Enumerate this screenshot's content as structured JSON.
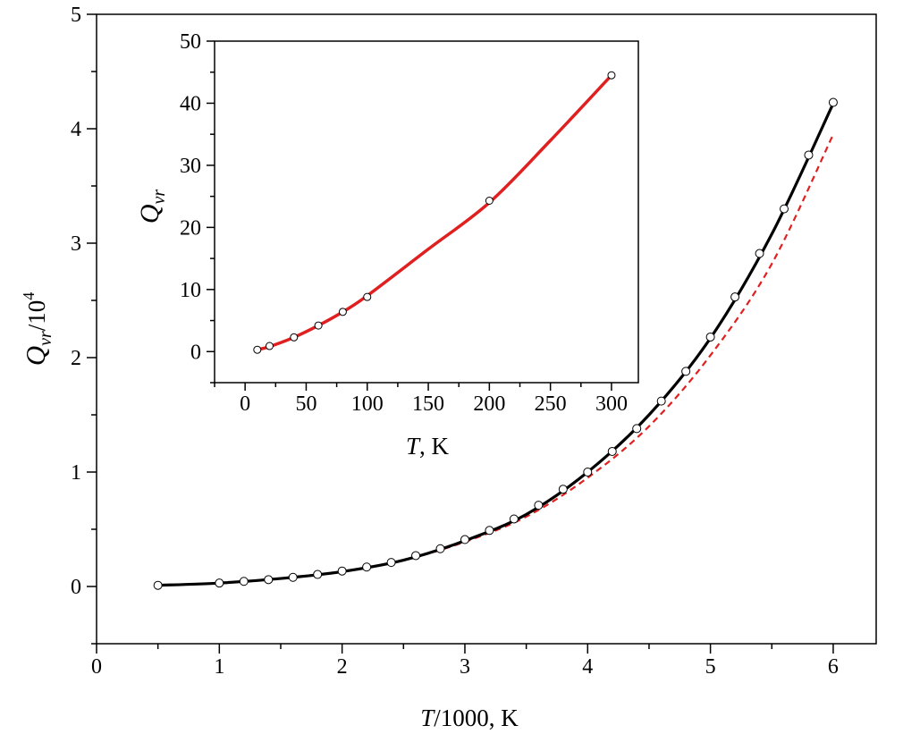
{
  "chart_data": [
    {
      "type": "line",
      "panel": "main",
      "xlabel_var": "T",
      "xlabel_rest": "/1000, K",
      "ylabel_var": "Q",
      "ylabel_sub": "vr",
      "ylabel_rest": "/10",
      "ylabel_sup": "4",
      "xlim": [
        0,
        6.35
      ],
      "ylim": [
        -0.5,
        5
      ],
      "xticks": [
        "0",
        "1",
        "2",
        "3",
        "4",
        "5",
        "6"
      ],
      "yticks": [
        "0",
        "1",
        "2",
        "3",
        "4",
        "5"
      ],
      "series": [
        {
          "style": "solid",
          "color": "#000000",
          "x": [
            0.5,
            1.0,
            1.5,
            2.0,
            2.5,
            3.0,
            3.5,
            4.0,
            4.5,
            5.0,
            5.5,
            6.0
          ],
          "y": [
            0.01,
            0.03,
            0.07,
            0.13,
            0.23,
            0.4,
            0.63,
            1.0,
            1.5,
            2.17,
            3.08,
            4.22
          ]
        },
        {
          "style": "dashed",
          "color": "#e02020",
          "x": [
            0.5,
            1.0,
            1.5,
            2.0,
            2.5,
            3.0,
            3.5,
            4.0,
            4.5,
            5.0,
            5.5,
            6.0
          ],
          "y": [
            0.01,
            0.03,
            0.07,
            0.13,
            0.23,
            0.39,
            0.61,
            0.95,
            1.4,
            2.02,
            2.82,
            3.95
          ]
        },
        {
          "style": "markers",
          "color": "#000000",
          "x": [
            0.5,
            1.0,
            1.2,
            1.4,
            1.6,
            1.8,
            2.0,
            2.2,
            2.4,
            2.6,
            2.8,
            3.0,
            3.2,
            3.4,
            3.6,
            3.8,
            4.0,
            4.2,
            4.4,
            4.6,
            4.8,
            5.0,
            5.2,
            5.4,
            5.6,
            5.8,
            6.0
          ],
          "y": [
            0.01,
            0.03,
            0.045,
            0.06,
            0.08,
            0.105,
            0.135,
            0.17,
            0.21,
            0.27,
            0.33,
            0.41,
            0.49,
            0.59,
            0.71,
            0.85,
            1.0,
            1.18,
            1.38,
            1.62,
            1.88,
            2.18,
            2.53,
            2.91,
            3.3,
            3.77,
            4.23
          ]
        }
      ]
    },
    {
      "type": "line",
      "panel": "inset",
      "xlabel_var": "T",
      "xlabel_rest": ", K",
      "ylabel_var": "Q",
      "ylabel_sub": "vr",
      "xlim": [
        -25,
        322
      ],
      "ylim": [
        -5,
        50
      ],
      "xticks": [
        "0",
        "50",
        "100",
        "150",
        "200",
        "250",
        "300"
      ],
      "yticks": [
        "0",
        "10",
        "20",
        "30",
        "40",
        "50"
      ],
      "series": [
        {
          "style": "solid",
          "color": "#e02020",
          "x": [
            10,
            20,
            40,
            60,
            80,
            100,
            150,
            200,
            250,
            300
          ],
          "y": [
            0.3,
            0.8,
            2.3,
            4.2,
            6.4,
            9.0,
            16.5,
            24.0,
            34.0,
            44.5
          ]
        },
        {
          "style": "markers",
          "color": "#000000",
          "x": [
            10,
            20,
            40,
            60,
            80,
            100,
            200,
            300
          ],
          "y": [
            0.3,
            0.9,
            2.3,
            4.2,
            6.4,
            8.8,
            24.3,
            44.5
          ]
        }
      ]
    }
  ]
}
